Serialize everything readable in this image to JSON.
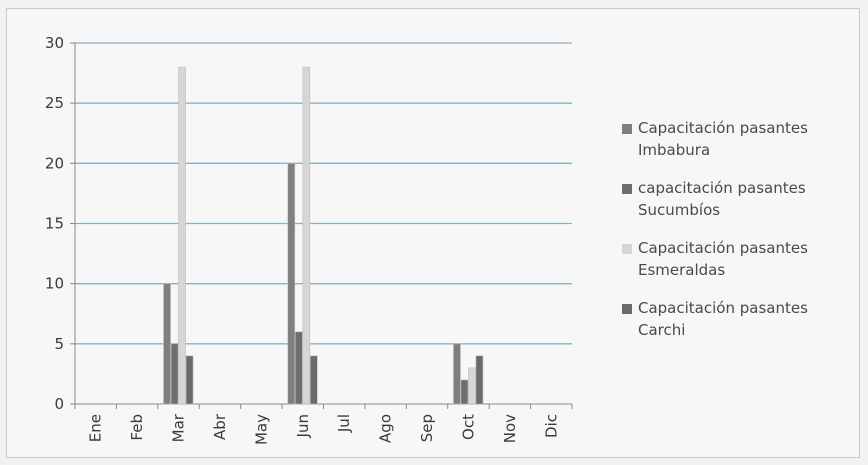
{
  "chart_data": {
    "type": "bar",
    "categories": [
      "Ene",
      "Feb",
      "Mar",
      "Abr",
      "May",
      "Jun",
      "Jul",
      "Ago",
      "Sep",
      "Oct",
      "Nov",
      "Dic"
    ],
    "series": [
      {
        "name": "Capacitación pasantes Imbabura",
        "color": "#7f7f7f",
        "values": [
          0,
          0,
          10,
          0,
          0,
          20,
          0,
          0,
          0,
          5,
          0,
          0
        ]
      },
      {
        "name": "capacitación pasantes Sucumbíos",
        "color": "#6e6e6e",
        "values": [
          0,
          0,
          5,
          0,
          0,
          6,
          0,
          0,
          0,
          2,
          0,
          0
        ]
      },
      {
        "name": "Capacitación pasantes Esmeraldas",
        "color": "#d6d6d6",
        "values": [
          0,
          0,
          28,
          0,
          0,
          28,
          0,
          0,
          0,
          3,
          0,
          0
        ]
      },
      {
        "name": "Capacitación pasantes Carchi",
        "color": "#6a6a6a",
        "values": [
          0,
          0,
          4,
          0,
          0,
          4,
          0,
          0,
          0,
          4,
          0,
          0
        ]
      }
    ],
    "yticks": [
      0,
      5,
      10,
      15,
      20,
      25,
      30
    ],
    "ylim": [
      0,
      30
    ],
    "grid": true,
    "legend_position": "right"
  }
}
